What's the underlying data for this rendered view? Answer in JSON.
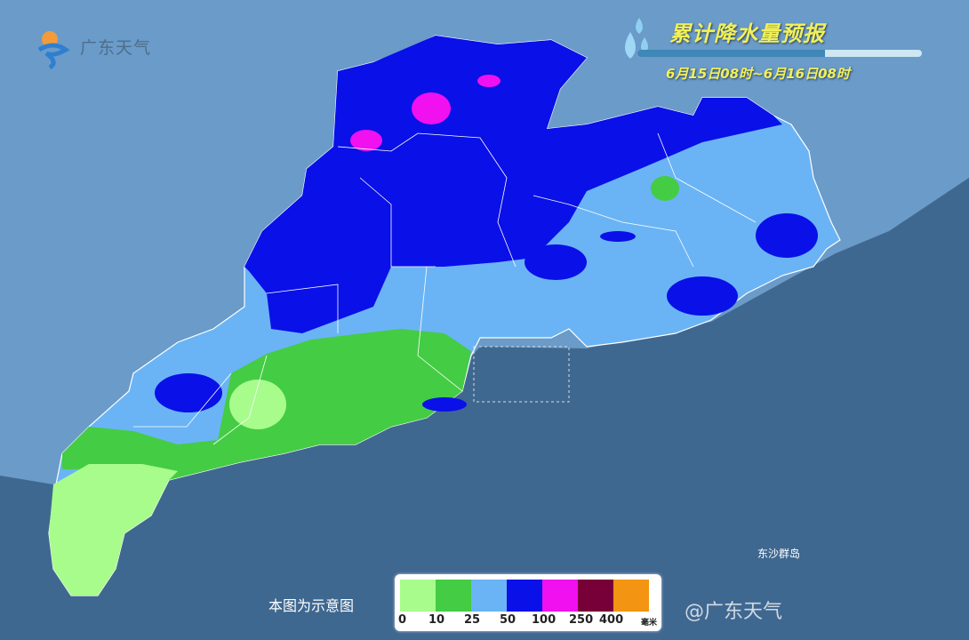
{
  "logo": {
    "text": "广东天气"
  },
  "title": {
    "main": "累计降水量预报",
    "period": "6月15日08时~6月16日08时"
  },
  "note": "本图为示意图",
  "island_label": "东沙群岛",
  "watermark": "@广东天气",
  "legend": {
    "labels": [
      "0",
      "10",
      "25",
      "50",
      "100",
      "250",
      "400"
    ],
    "unit": "毫米",
    "colors": [
      "#a8fc8c",
      "#44cc44",
      "#6ab4f5",
      "#0a10e8",
      "#f010f0",
      "#780038",
      "#f39512"
    ]
  },
  "colors": {
    "sea": "#3f6890",
    "land_outside": "#6a9bc9",
    "province_border": "#ffffff"
  }
}
